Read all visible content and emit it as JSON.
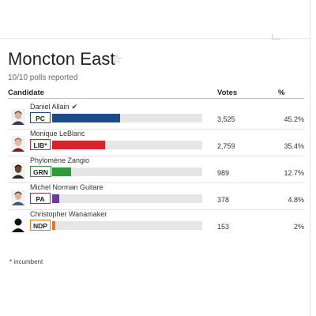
{
  "race": {
    "title": "Moncton East",
    "polls_reported": "10/10 polls reported"
  },
  "columns": {
    "candidate": "Candidate",
    "votes": "Votes",
    "percent": "%"
  },
  "candidates": [
    {
      "name": "Daniel Allain",
      "winner_mark": "✔",
      "party": "PC",
      "party_color": "#1f4a8a",
      "party_border": "#1f4a8a",
      "votes": "3,525",
      "percent": "45.2%",
      "share": 0.452,
      "icon": "candidate-portrait-icon"
    },
    {
      "name": "Monique LeBlanc",
      "party": "LIB*",
      "party_color": "#d9222a",
      "party_border": "#d9222a",
      "votes": "2,759",
      "percent": "35.4%",
      "share": 0.354,
      "icon": "candidate-portrait-icon"
    },
    {
      "name": "Phylomène Zangio",
      "party": "GRN",
      "party_color": "#2e9a3a",
      "party_border": "#2e9a3a",
      "votes": "989",
      "percent": "12.7%",
      "share": 0.127,
      "icon": "candidate-portrait-icon"
    },
    {
      "name": "Michel Norman Guitare",
      "party": "PA",
      "party_color": "#6a3aa0",
      "party_border": "#6a3aa0",
      "votes": "378",
      "percent": "4.8%",
      "share": 0.048,
      "icon": "candidate-portrait-icon"
    },
    {
      "name": "Christopher Wanamaker",
      "party": "NDP",
      "party_color": "#f37021",
      "party_border": "#f37021",
      "votes": "153",
      "percent": "2%",
      "share": 0.02,
      "icon": "silhouette-avatar-icon"
    }
  ],
  "footnote": "* incumbent",
  "icons": {
    "favorite": "star-outline-icon"
  }
}
